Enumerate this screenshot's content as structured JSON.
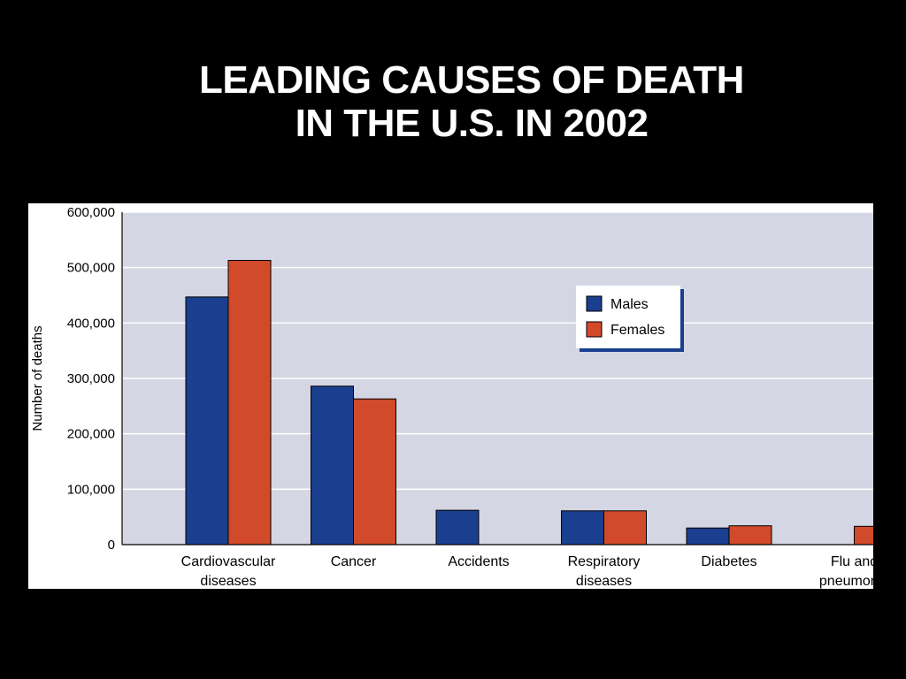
{
  "title": {
    "line1": "LEADING CAUSES OF DEATH",
    "line2": "IN THE U.S. IN 2002"
  },
  "chart_data": {
    "type": "bar",
    "ylabel": "Number of deaths",
    "xlabel": "",
    "ylim": [
      0,
      600000
    ],
    "yticks": [
      "0",
      "100,000",
      "200,000",
      "300,000",
      "400,000",
      "500,000",
      "600,000"
    ],
    "grid": true,
    "legend_position": "top-right",
    "categories": [
      [
        "Cardiovascular",
        "diseases"
      ],
      [
        "Cancer"
      ],
      [
        "Accidents"
      ],
      [
        "Respiratory",
        "diseases"
      ],
      [
        "Diabetes"
      ],
      [
        "Flu and",
        "pneumonia"
      ]
    ],
    "series": [
      {
        "name": "Males",
        "color": "#1b3f8f",
        "values": [
          447000,
          286000,
          62000,
          61000,
          30000,
          null
        ]
      },
      {
        "name": "Females",
        "color": "#d14a2a",
        "values": [
          513000,
          263000,
          null,
          61000,
          34000,
          33000
        ]
      }
    ],
    "colors": {
      "plot_background": "#d4d6e3",
      "gridline": "#ffffff",
      "panel_background": "#ffffff",
      "slide_background": "#000000"
    }
  }
}
